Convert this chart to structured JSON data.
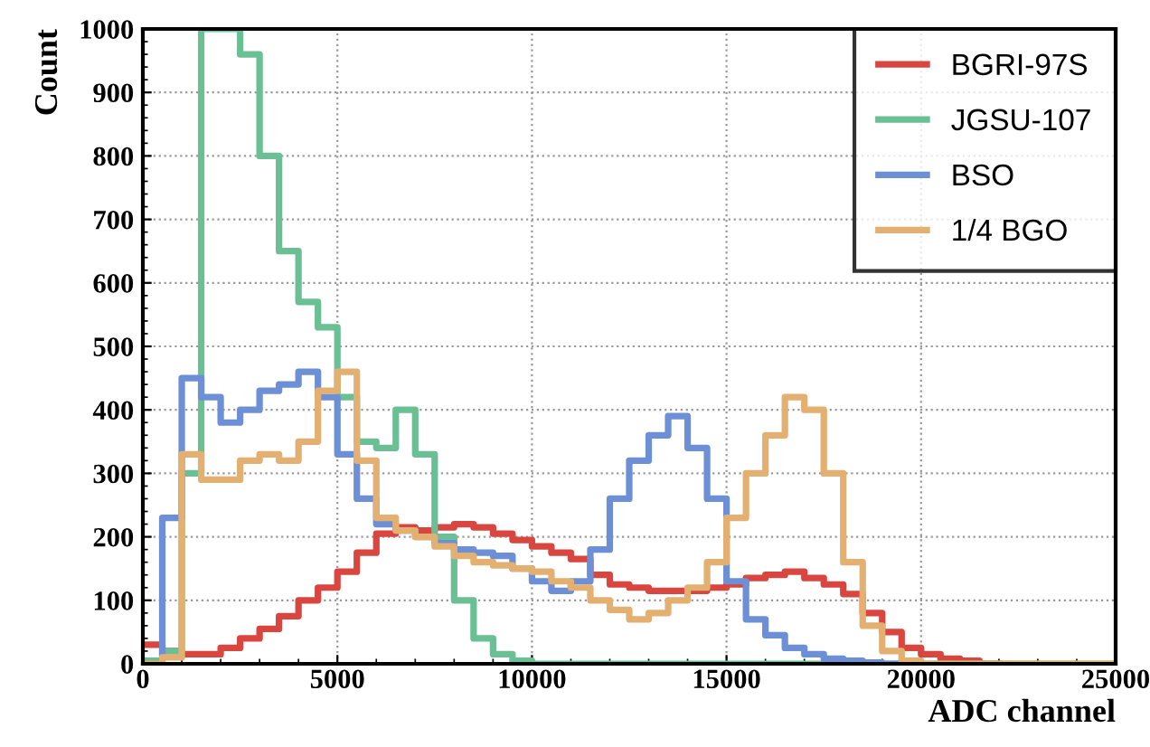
{
  "chart_data": {
    "type": "step",
    "xlabel": "ADC channel",
    "ylabel": "Count",
    "x": [
      0,
      500,
      1000,
      1500,
      2000,
      2500,
      3000,
      3500,
      4000,
      4500,
      5000,
      5500,
      6000,
      6500,
      7000,
      7500,
      8000,
      8500,
      9000,
      9500,
      10000,
      10500,
      11000,
      11500,
      12000,
      12500,
      13000,
      13500,
      14000,
      14500,
      15000,
      15500,
      16000,
      16500,
      17000,
      17500,
      18000,
      18500,
      19000,
      19500,
      20000,
      20500,
      21000,
      21500,
      22000,
      22500,
      23000,
      23500,
      24000,
      24500,
      25000
    ],
    "series": [
      {
        "name": "BGRI-97S",
        "color": "#d9453f",
        "values": [
          30,
          20,
          15,
          15,
          25,
          40,
          55,
          75,
          100,
          120,
          145,
          175,
          205,
          215,
          210,
          215,
          220,
          215,
          205,
          195,
          185,
          175,
          165,
          140,
          125,
          120,
          115,
          115,
          115,
          120,
          125,
          135,
          140,
          145,
          135,
          125,
          110,
          80,
          50,
          25,
          15,
          8,
          5,
          0,
          0,
          null,
          null,
          null,
          null,
          null,
          null
        ]
      },
      {
        "name": "JGSU-107",
        "color": "#6bbf95",
        "values": [
          5,
          20,
          300,
          1000,
          1000,
          960,
          800,
          650,
          570,
          530,
          420,
          350,
          340,
          400,
          330,
          200,
          100,
          40,
          15,
          5,
          0,
          0,
          0,
          0,
          0,
          0,
          0,
          0,
          0,
          0,
          0,
          0,
          0,
          0,
          0,
          0,
          0,
          0,
          0,
          0,
          0,
          0,
          0,
          0,
          0,
          0,
          0,
          0,
          0,
          0,
          0
        ]
      },
      {
        "name": "BSO",
        "color": "#6d8fd6",
        "values": [
          0,
          230,
          450,
          420,
          380,
          400,
          430,
          440,
          460,
          420,
          330,
          260,
          220,
          210,
          200,
          190,
          180,
          175,
          170,
          150,
          130,
          115,
          130,
          180,
          260,
          320,
          360,
          390,
          340,
          260,
          130,
          70,
          45,
          25,
          15,
          8,
          5,
          2,
          0,
          0,
          0,
          null,
          null,
          null,
          null,
          null,
          null,
          null,
          null,
          null,
          null
        ]
      },
      {
        "name": "1/4 BGO",
        "color": "#e3b071",
        "values": [
          0,
          10,
          330,
          290,
          290,
          320,
          330,
          320,
          350,
          430,
          460,
          320,
          230,
          210,
          200,
          185,
          170,
          160,
          155,
          150,
          145,
          130,
          120,
          100,
          85,
          70,
          80,
          100,
          120,
          160,
          230,
          300,
          360,
          420,
          400,
          300,
          160,
          60,
          20,
          5,
          0,
          0,
          0,
          0,
          0,
          0,
          0,
          0,
          0,
          0,
          0
        ]
      }
    ],
    "xlim": [
      0,
      25000
    ],
    "ylim": [
      0,
      1000
    ],
    "xticks": [
      0,
      5000,
      10000,
      15000,
      20000,
      25000
    ],
    "yticks": [
      0,
      100,
      200,
      300,
      400,
      500,
      600,
      700,
      800,
      900,
      1000
    ],
    "grid": true,
    "legend": "top right",
    "line_style": "solid"
  }
}
